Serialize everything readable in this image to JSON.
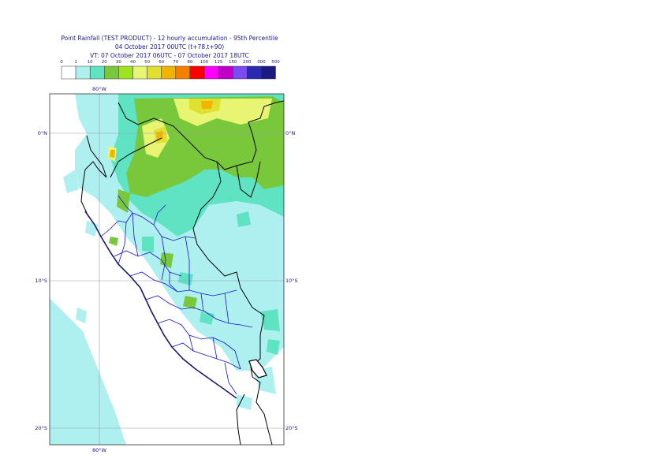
{
  "title": {
    "line1": "Point Rainfall (TEST PRODUCT) - 12 hourly accumulation - 95th Percentile",
    "line2": "04 October 2017 00UTC (t+78,t+90)",
    "line3": "VT: 07 October 2017 06UTC - 07 October 2017 18UTC"
  },
  "legend": {
    "thresholds": [
      "0",
      "1",
      "10",
      "20",
      "30",
      "40",
      "50",
      "60",
      "70",
      "80",
      "100",
      "125",
      "150",
      "200",
      "300",
      "500"
    ],
    "colors": [
      "#ffffff",
      "#aef0f0",
      "#5fe3c3",
      "#79c83c",
      "#9ee41e",
      "#e8f573",
      "#e0e030",
      "#f2b400",
      "#f47f00",
      "#ff0000",
      "#ff00ff",
      "#c000c8",
      "#7a4cf0",
      "#2a2ab0",
      "#1a1a80"
    ]
  },
  "axes": {
    "lon_top": "80°W",
    "lon_bottom": "80°W",
    "lat_left": [
      "0°N",
      "10°S",
      "20°S"
    ],
    "lat_right": [
      "0°N",
      "10°S",
      "20°S"
    ]
  }
}
